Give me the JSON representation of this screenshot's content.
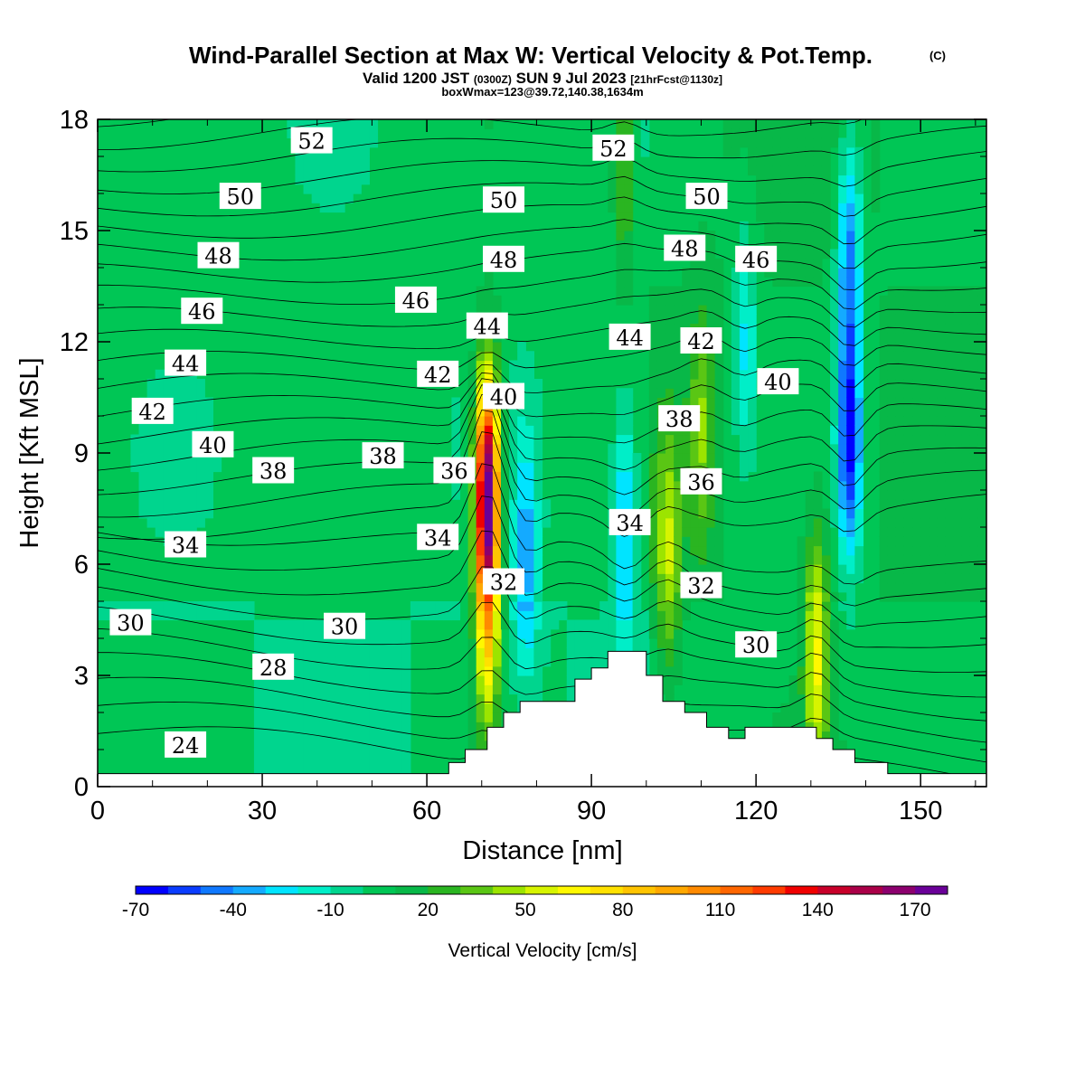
{
  "chart_data": {
    "type": "heatmap",
    "title": "Wind-Parallel Section at Max W: Vertical Velocity & Pot.Temp.",
    "title_mark": "(C)",
    "subtitle": {
      "prefix": "Valid 1200 JST",
      "utc": "(0300Z)",
      "date": "SUN 9 Jul 2023",
      "fcst": "[21hrFcst@1130z]"
    },
    "info": "boxWmax=123@39.72,140.38,1634m",
    "xlabel": "Distance [nm]",
    "ylabel": "Height [Kft MSL]",
    "xlim": [
      0,
      162
    ],
    "ylim": [
      0,
      18
    ],
    "xticks": [
      0,
      30,
      60,
      90,
      120,
      150
    ],
    "yticks": [
      0,
      3,
      6,
      9,
      12,
      15,
      18
    ],
    "colorbar": {
      "label": "Vertical Velocity [cm/s]",
      "tick_labels": [
        "-70",
        "-40",
        "-10",
        "20",
        "50",
        "80",
        "110",
        "140",
        "170"
      ],
      "colors": [
        "#0000ff",
        "#0a3cff",
        "#0f78ff",
        "#14aaff",
        "#00e4ff",
        "#00eec8",
        "#00d58e",
        "#00c655",
        "#08b848",
        "#2ab521",
        "#5ac614",
        "#9ce400",
        "#d7f400",
        "#fff800",
        "#ffe100",
        "#ffc400",
        "#ffa800",
        "#ff8a00",
        "#ff6600",
        "#ff3b00",
        "#f00000",
        "#c8002a",
        "#aa0048",
        "#8c006e",
        "#6a0098"
      ]
    },
    "terrain": [
      [
        0,
        0.35
      ],
      [
        64,
        0.35
      ],
      [
        64,
        0.65
      ],
      [
        67,
        0.65
      ],
      [
        67,
        1
      ],
      [
        71,
        1
      ],
      [
        71,
        1.6
      ],
      [
        74,
        1.6
      ],
      [
        74,
        2
      ],
      [
        77,
        2
      ],
      [
        77,
        2.3
      ],
      [
        87,
        2.3
      ],
      [
        87,
        2.9
      ],
      [
        90,
        2.9
      ],
      [
        90,
        3.2
      ],
      [
        93,
        3.2
      ],
      [
        93,
        3.65
      ],
      [
        100,
        3.65
      ],
      [
        100,
        3
      ],
      [
        103,
        3
      ],
      [
        103,
        2.3
      ],
      [
        107,
        2.3
      ],
      [
        107,
        2
      ],
      [
        111,
        2
      ],
      [
        111,
        1.6
      ],
      [
        115,
        1.6
      ],
      [
        115,
        1.3
      ],
      [
        118,
        1.3
      ],
      [
        118,
        1.6
      ],
      [
        131,
        1.6
      ],
      [
        131,
        1.3
      ],
      [
        134,
        1.3
      ],
      [
        134,
        1
      ],
      [
        138,
        1
      ],
      [
        138,
        0.65
      ],
      [
        144,
        0.65
      ],
      [
        144,
        0.35
      ],
      [
        162,
        0.35
      ]
    ],
    "updrafts": [
      {
        "x": 71,
        "y": 8.0,
        "peak": 170
      },
      {
        "x": 71,
        "y": 4.2,
        "peak": 55
      },
      {
        "x": 78,
        "y": 6.2,
        "peak": -40
      },
      {
        "x": 96,
        "y": 7.0,
        "peak": -40
      },
      {
        "x": 96,
        "y": 16.8,
        "peak": 30
      },
      {
        "x": 104,
        "y": 6.3,
        "peak": 40
      },
      {
        "x": 110,
        "y": 9.6,
        "peak": 30
      },
      {
        "x": 118,
        "y": 12.0,
        "peak": -30
      },
      {
        "x": 131,
        "y": 3.6,
        "peak": 55
      },
      {
        "x": 137,
        "y": 9.3,
        "peak": -70
      },
      {
        "x": 137,
        "y": 14.5,
        "peak": -50
      }
    ],
    "theta_levels": [
      24,
      25,
      26,
      27,
      28,
      29,
      30,
      31,
      32,
      33,
      34,
      35,
      36,
      37,
      38,
      39,
      40,
      41,
      42,
      43,
      44,
      45,
      46,
      47,
      48,
      49,
      50,
      51,
      52,
      53
    ],
    "contour_labels": [
      {
        "text": "24",
        "x": 16,
        "y": 1.1
      },
      {
        "text": "28",
        "x": 32,
        "y": 3.2
      },
      {
        "text": "30",
        "x": 6,
        "y": 4.4
      },
      {
        "text": "30",
        "x": 45,
        "y": 4.3
      },
      {
        "text": "30",
        "x": 120,
        "y": 3.8
      },
      {
        "text": "32",
        "x": 74,
        "y": 5.5
      },
      {
        "text": "32",
        "x": 110,
        "y": 5.4
      },
      {
        "text": "34",
        "x": 16,
        "y": 6.5
      },
      {
        "text": "34",
        "x": 62,
        "y": 6.7
      },
      {
        "text": "34",
        "x": 97,
        "y": 7.1
      },
      {
        "text": "36",
        "x": 65,
        "y": 8.5
      },
      {
        "text": "36",
        "x": 110,
        "y": 8.2
      },
      {
        "text": "38",
        "x": 32,
        "y": 8.5
      },
      {
        "text": "38",
        "x": 52,
        "y": 8.9
      },
      {
        "text": "38",
        "x": 106,
        "y": 9.9
      },
      {
        "text": "40",
        "x": 21,
        "y": 9.2
      },
      {
        "text": "40",
        "x": 74,
        "y": 10.5
      },
      {
        "text": "40",
        "x": 124,
        "y": 10.9
      },
      {
        "text": "42",
        "x": 10,
        "y": 10.1
      },
      {
        "text": "42",
        "x": 62,
        "y": 11.1
      },
      {
        "text": "42",
        "x": 110,
        "y": 12.0
      },
      {
        "text": "44",
        "x": 16,
        "y": 11.4
      },
      {
        "text": "44",
        "x": 71,
        "y": 12.4
      },
      {
        "text": "44",
        "x": 97,
        "y": 12.1
      },
      {
        "text": "46",
        "x": 19,
        "y": 12.8
      },
      {
        "text": "46",
        "x": 58,
        "y": 13.1
      },
      {
        "text": "46",
        "x": 120,
        "y": 14.2
      },
      {
        "text": "48",
        "x": 22,
        "y": 14.3
      },
      {
        "text": "48",
        "x": 74,
        "y": 14.2
      },
      {
        "text": "48",
        "x": 107,
        "y": 14.5
      },
      {
        "text": "50",
        "x": 26,
        "y": 15.9
      },
      {
        "text": "50",
        "x": 74,
        "y": 15.8
      },
      {
        "text": "50",
        "x": 111,
        "y": 15.9
      },
      {
        "text": "52",
        "x": 39,
        "y": 17.4
      },
      {
        "text": "52",
        "x": 94,
        "y": 17.2
      }
    ]
  }
}
